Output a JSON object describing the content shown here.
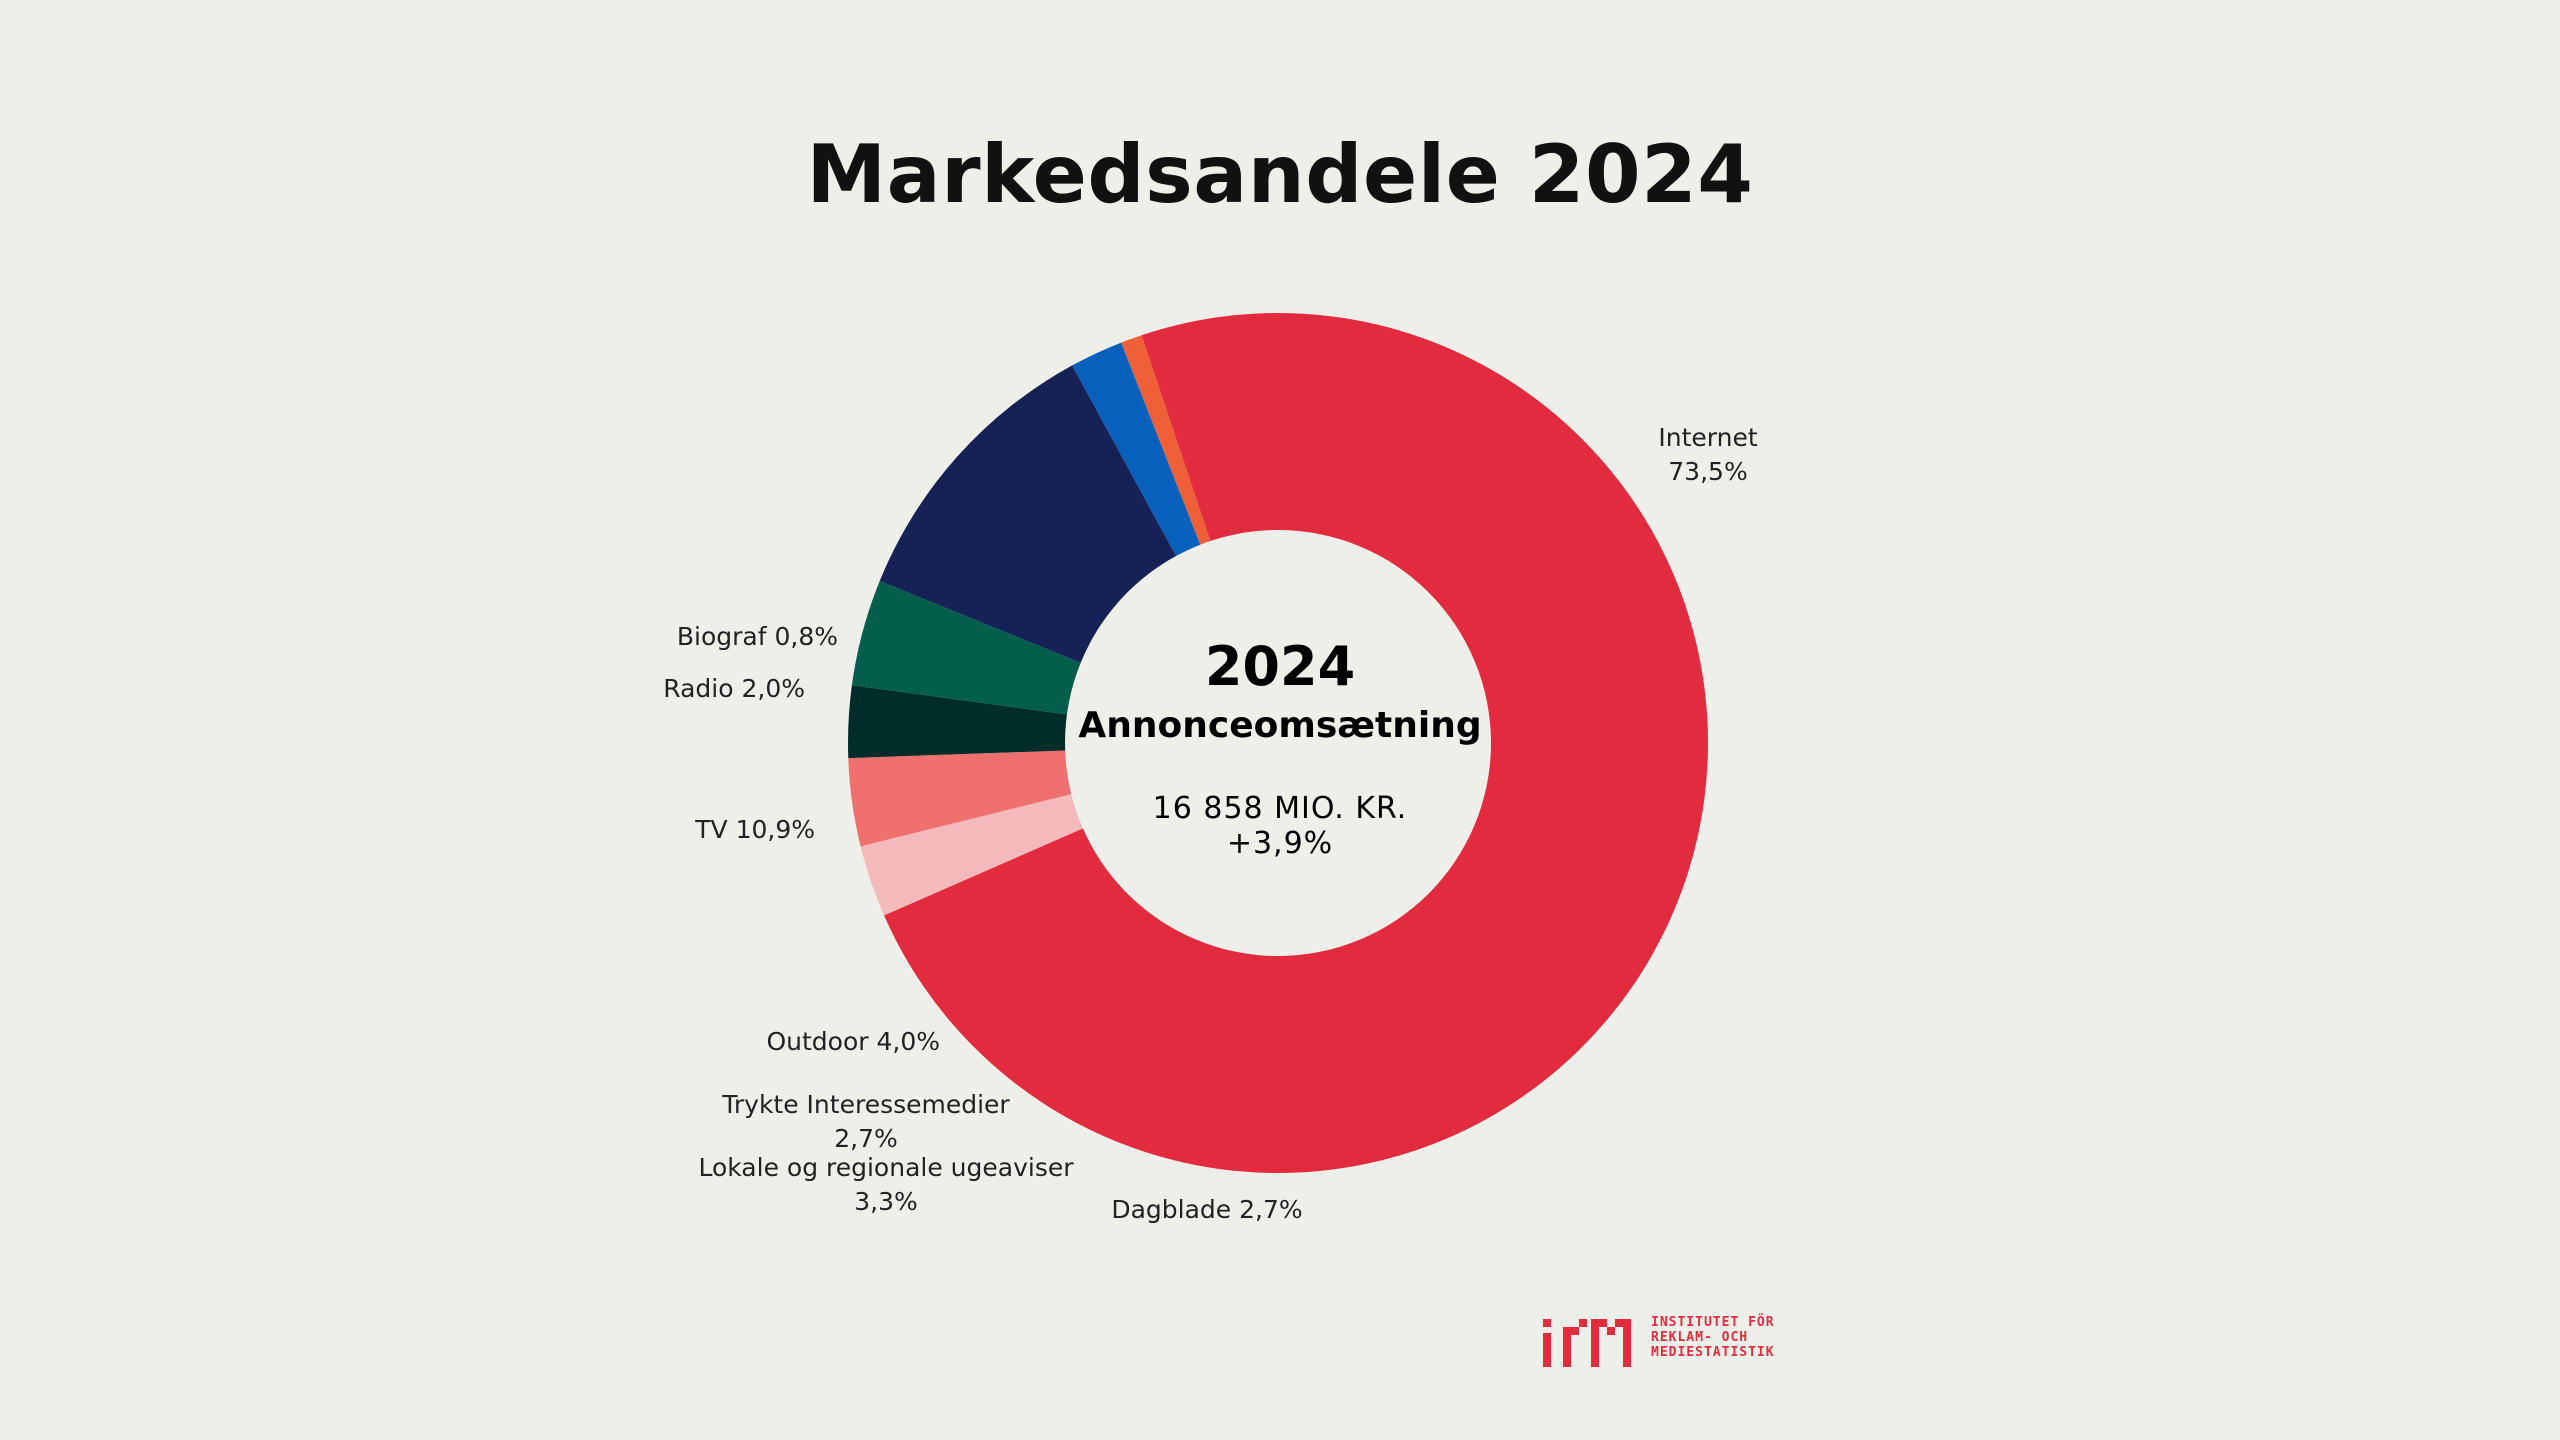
{
  "title": "Markedsandele 2024",
  "center": {
    "year": "2024",
    "subtitle": "Annonceomsætning",
    "total": "16 858 MIO. KR.",
    "growth": "+3,9%"
  },
  "chart_data": {
    "type": "pie",
    "title": "Markedsandele 2024",
    "unit": "%",
    "slices": [
      {
        "name": "Internet",
        "value": 73.5,
        "label_lines": [
          "Internet",
          "73,5%"
        ],
        "color": "#e22b3f"
      },
      {
        "name": "Dagblade",
        "value": 2.7,
        "label_lines": [
          "Dagblade 2,7%"
        ],
        "color": "#f4b9bb"
      },
      {
        "name": "Lokale og regionale ugeaviser",
        "value": 3.3,
        "label_lines": [
          "Lokale og regionale ugeaviser",
          "3,3%"
        ],
        "color": "#f07070"
      },
      {
        "name": "Trykte Interessemedier",
        "value": 2.7,
        "label_lines": [
          "Trykte Interessemedier",
          "2,7%"
        ],
        "color": "#002c29"
      },
      {
        "name": "Outdoor",
        "value": 4.0,
        "label_lines": [
          "Outdoor 4,0%"
        ],
        "color": "#035e4c"
      },
      {
        "name": "TV",
        "value": 10.9,
        "label_lines": [
          "TV 10,9%"
        ],
        "color": "#162255"
      },
      {
        "name": "Radio",
        "value": 2.0,
        "label_lines": [
          "Radio 2,0%"
        ],
        "color": "#0660bc"
      },
      {
        "name": "Biograf",
        "value": 0.8,
        "label_lines": [
          "Biograf 0,8%"
        ],
        "color": "#ef6038"
      }
    ]
  },
  "logo": {
    "mark": "irm",
    "text": "INSTITUTET FÖR\nREKLAM- OCH\nMEDIESTATISTIK",
    "color": "#e22c3e"
  }
}
